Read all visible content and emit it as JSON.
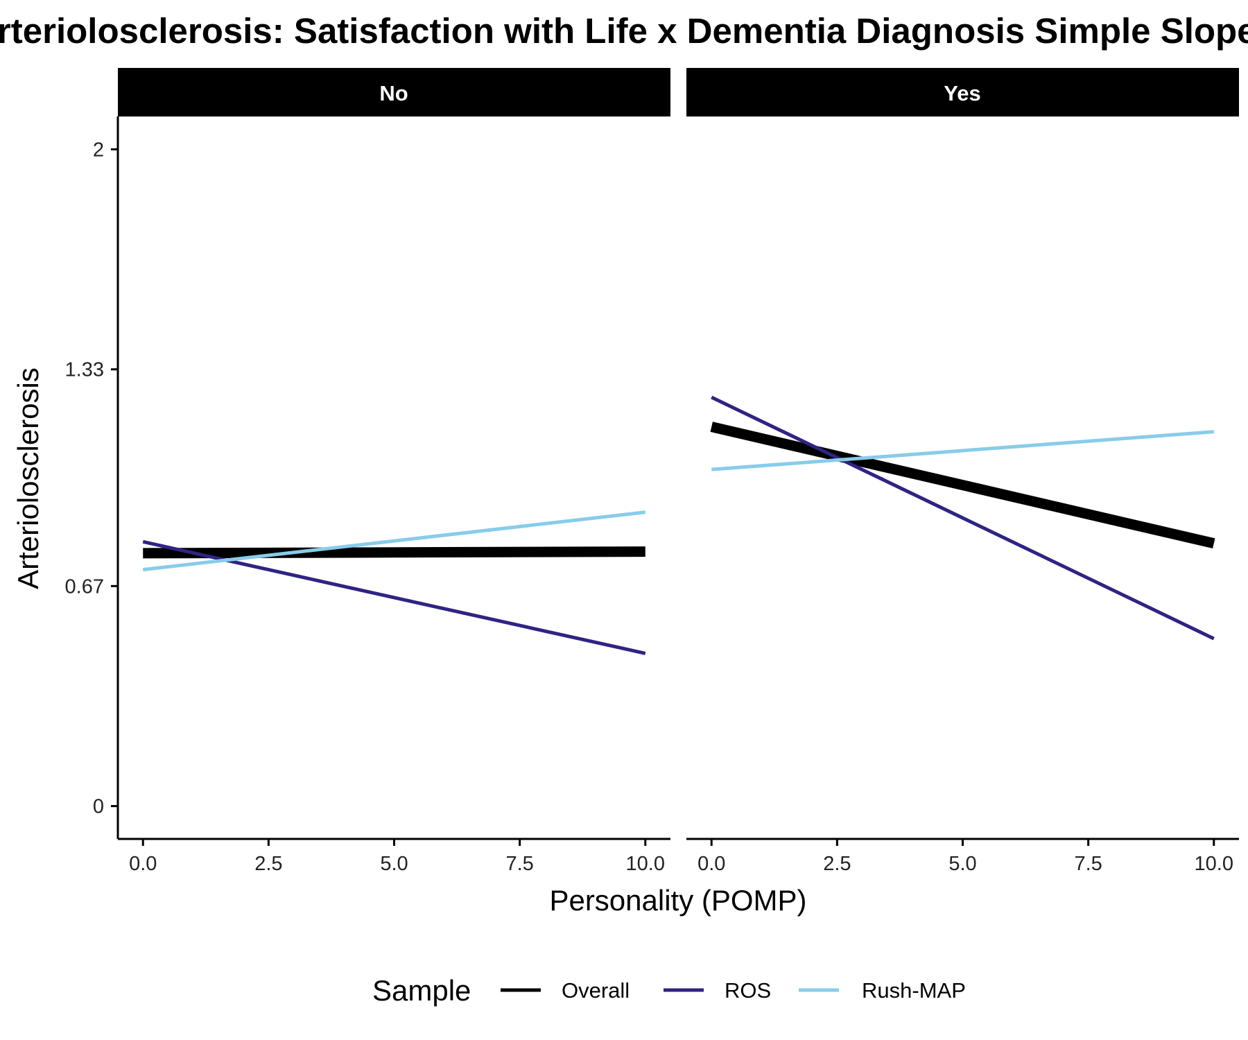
{
  "chart_data": {
    "type": "line",
    "title": "Arteriolosclerosis: Satisfaction with Life x Dementia Diagnosis Simple Slopes",
    "xlabel": "Personality (POMP)",
    "ylabel": "Arteriolosclerosis",
    "xlim": [
      -0.5,
      10.5
    ],
    "ylim": [
      -0.1,
      2.1
    ],
    "x_ticks": [
      0,
      2.5,
      5,
      7.5,
      10
    ],
    "x_tick_labels": [
      "0.0",
      "2.5",
      "5.0",
      "7.5",
      "10.0"
    ],
    "y_ticks": [
      0,
      0.67,
      1.33,
      2
    ],
    "y_tick_labels": [
      "0",
      "0.67",
      "1.33",
      "2"
    ],
    "grid": false,
    "legend": {
      "title": "Sample",
      "position": "bottom",
      "entries": [
        "Overall",
        "ROS",
        "Rush-MAP"
      ]
    },
    "facets": [
      {
        "label": "No",
        "series": [
          {
            "name": "Overall",
            "color": "#000000",
            "width": "thick",
            "x": [
              0,
              10
            ],
            "y": [
              0.77,
              0.775
            ]
          },
          {
            "name": "ROS",
            "color": "#2e2483",
            "width": "thin",
            "x": [
              0,
              10
            ],
            "y": [
              0.805,
              0.465
            ]
          },
          {
            "name": "Rush-MAP",
            "color": "#88ccea",
            "width": "thin",
            "x": [
              0,
              10
            ],
            "y": [
              0.72,
              0.895
            ]
          }
        ]
      },
      {
        "label": "Yes",
        "series": [
          {
            "name": "Overall",
            "color": "#000000",
            "width": "thick",
            "x": [
              0,
              10
            ],
            "y": [
              1.155,
              0.8
            ]
          },
          {
            "name": "ROS",
            "color": "#2e2483",
            "width": "thin",
            "x": [
              0,
              10
            ],
            "y": [
              1.245,
              0.51
            ]
          },
          {
            "name": "Rush-MAP",
            "color": "#88ccea",
            "width": "thin",
            "x": [
              0,
              10
            ],
            "y": [
              1.025,
              1.14
            ]
          }
        ]
      }
    ]
  }
}
